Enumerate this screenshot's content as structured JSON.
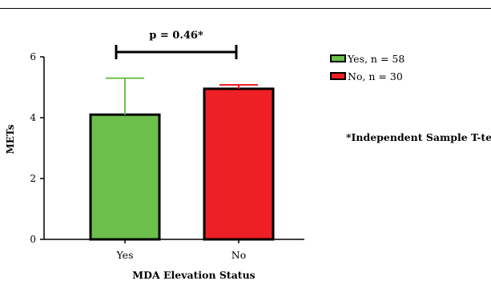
{
  "chart_data": {
    "type": "bar",
    "categories": [
      "Yes",
      "No"
    ],
    "values": [
      4.1,
      4.95
    ],
    "error_plus": [
      1.2,
      0.13
    ],
    "colors": [
      "#6cbf4b",
      "#ee2025"
    ],
    "xlabel": "MDA Elevation Status",
    "ylabel": "METs",
    "ylim": [
      0,
      6
    ],
    "yticks": [
      "0",
      "2",
      "4",
      "6"
    ],
    "legend": [
      {
        "label": "Yes, n = 58",
        "color": "#6cbf4b"
      },
      {
        "label": "No, n = 30",
        "color": "#ee2025"
      }
    ],
    "legend_position": "top-right",
    "annotation": "p = 0.46*",
    "footnote": "*Independent Sample T-test"
  }
}
